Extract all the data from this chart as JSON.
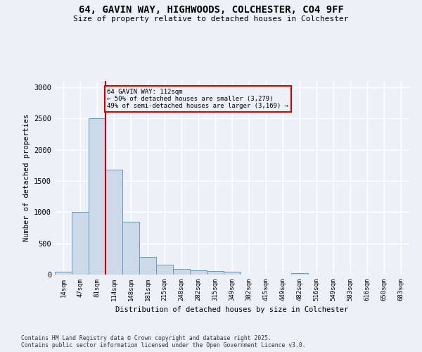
{
  "title_line1": "64, GAVIN WAY, HIGHWOODS, COLCHESTER, CO4 9FF",
  "title_line2": "Size of property relative to detached houses in Colchester",
  "xlabel": "Distribution of detached houses by size in Colchester",
  "ylabel": "Number of detached properties",
  "categories": [
    "14sqm",
    "47sqm",
    "81sqm",
    "114sqm",
    "148sqm",
    "181sqm",
    "215sqm",
    "248sqm",
    "282sqm",
    "315sqm",
    "349sqm",
    "382sqm",
    "415sqm",
    "449sqm",
    "482sqm",
    "516sqm",
    "549sqm",
    "583sqm",
    "616sqm",
    "650sqm",
    "683sqm"
  ],
  "values": [
    50,
    1000,
    2500,
    1680,
    850,
    280,
    155,
    90,
    65,
    55,
    45,
    5,
    0,
    0,
    25,
    0,
    0,
    0,
    0,
    0,
    0
  ],
  "bar_color": "#ccd9e8",
  "bar_edge_color": "#6699bb",
  "vline_position": 2.5,
  "vline_color": "#cc0000",
  "annotation_text": "64 GAVIN WAY: 112sqm\n← 50% of detached houses are smaller (3,279)\n49% of semi-detached houses are larger (3,169) →",
  "annotation_box_color": "#cc0000",
  "ylim": [
    0,
    3100
  ],
  "yticks": [
    0,
    500,
    1000,
    1500,
    2000,
    2500,
    3000
  ],
  "bg_color": "#edf1f7",
  "grid_color": "#ffffff",
  "footer_line1": "Contains HM Land Registry data © Crown copyright and database right 2025.",
  "footer_line2": "Contains public sector information licensed under the Open Government Licence v3.0."
}
